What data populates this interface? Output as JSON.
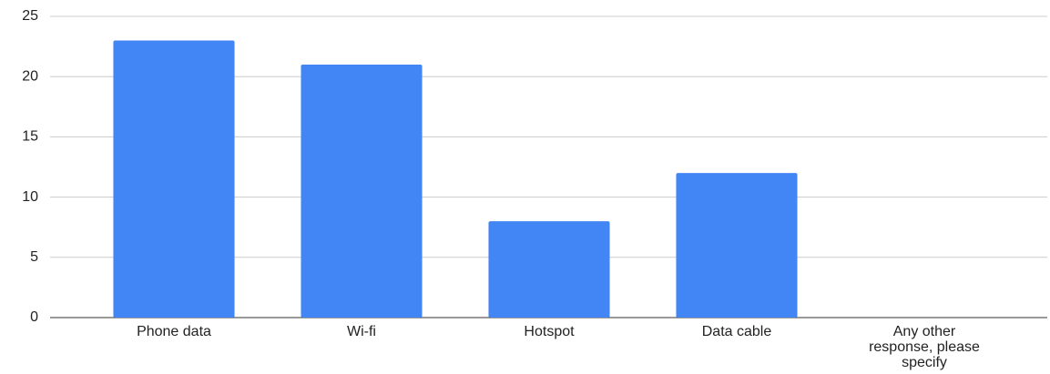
{
  "chart_data": {
    "type": "bar",
    "categories": [
      "Phone data",
      "Wi-fi",
      "Hotspot",
      "Data cable",
      "Any other response, please specify"
    ],
    "values": [
      23,
      21,
      8,
      12,
      0
    ],
    "color": "#4285f4",
    "ylim": [
      0,
      25
    ],
    "yticks": [
      0,
      5,
      10,
      15,
      20,
      25
    ],
    "grid": true
  }
}
